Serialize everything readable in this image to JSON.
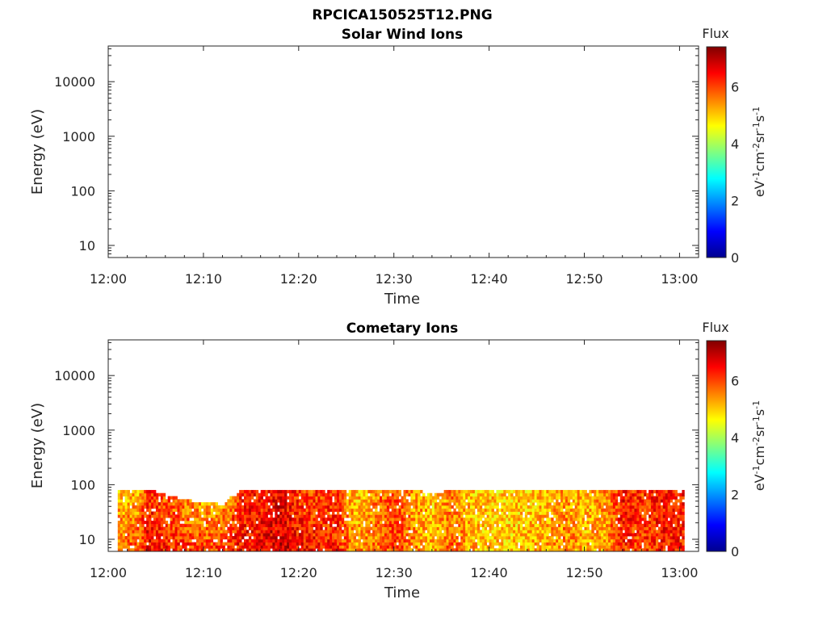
{
  "figure": {
    "title": "RPCICA150525T12.PNG"
  },
  "colors": {
    "axis": "#262626",
    "background": "#ffffff",
    "colormap": [
      "#00008f",
      "#0000ff",
      "#0080ff",
      "#00ffff",
      "#80ff80",
      "#ffff00",
      "#ff8000",
      "#ff0000",
      "#800000"
    ]
  },
  "chart_data": [
    {
      "type": "heatmap",
      "title": "Solar Wind Ions",
      "xlabel": "Time",
      "ylabel": "Energy (eV)",
      "x_ticks": [
        "12:00",
        "12:10",
        "12:20",
        "12:30",
        "12:40",
        "12:50",
        "13:00"
      ],
      "y_ticks": [
        "10",
        "100",
        "1000",
        "10000"
      ],
      "y_scale": "log",
      "ylim": [
        6,
        45000
      ],
      "x_range_minutes": [
        0,
        62
      ],
      "colorbar": {
        "label": "Flux",
        "unit_parts": [
          "eV",
          "-1",
          "cm",
          "-2",
          "sr",
          "-1",
          "s",
          "-1"
        ],
        "ticks": [
          "0",
          "2",
          "4",
          "6"
        ],
        "range": [
          0,
          7.4
        ]
      },
      "data": "empty",
      "cells": []
    },
    {
      "type": "heatmap",
      "title": "Cometary Ions",
      "xlabel": "Time",
      "ylabel": "Energy (eV)",
      "x_ticks": [
        "12:00",
        "12:10",
        "12:20",
        "12:30",
        "12:40",
        "12:50",
        "13:00"
      ],
      "y_ticks": [
        "10",
        "100",
        "1000",
        "10000"
      ],
      "y_scale": "log",
      "ylim": [
        6,
        45000
      ],
      "x_range_minutes": [
        0,
        62
      ],
      "colorbar": {
        "label": "Flux",
        "unit_parts": [
          "eV",
          "-1",
          "cm",
          "-2",
          "sr",
          "-1",
          "s",
          "-1"
        ],
        "ticks": [
          "0",
          "2",
          "4",
          "6"
        ],
        "range": [
          0,
          7.4
        ]
      },
      "data": "time vs energy flux spectrogram",
      "data_time_range_minutes": [
        1,
        60.5
      ],
      "data_energy_range_eV": [
        6,
        80
      ],
      "flux_profile": [
        {
          "t": 1,
          "e_hi": 80,
          "f_lo": 5.8,
          "f_hi": 5.0
        },
        {
          "t": 3,
          "e_hi": 80,
          "f_lo": 6.0,
          "f_hi": 5.2
        },
        {
          "t": 4,
          "e_hi": 80,
          "f_lo": 6.5,
          "f_hi": 6.2
        },
        {
          "t": 6,
          "e_hi": 60,
          "f_lo": 6.3,
          "f_hi": 5.8
        },
        {
          "t": 8,
          "e_hi": 50,
          "f_lo": 6.2,
          "f_hi": 5.3
        },
        {
          "t": 10,
          "e_hi": 45,
          "f_lo": 6.0,
          "f_hi": 5.0
        },
        {
          "t": 12,
          "e_hi": 40,
          "f_lo": 6.1,
          "f_hi": 5.2
        },
        {
          "t": 14,
          "e_hi": 80,
          "f_lo": 6.4,
          "f_hi": 6.3
        },
        {
          "t": 16,
          "e_hi": 80,
          "f_lo": 6.5,
          "f_hi": 6.3
        },
        {
          "t": 18,
          "e_hi": 80,
          "f_lo": 6.8,
          "f_hi": 6.6
        },
        {
          "t": 20,
          "e_hi": 80,
          "f_lo": 6.5,
          "f_hi": 6.0
        },
        {
          "t": 22,
          "e_hi": 75,
          "f_lo": 6.3,
          "f_hi": 6.0
        },
        {
          "t": 24,
          "e_hi": 80,
          "f_lo": 6.2,
          "f_hi": 6.1
        },
        {
          "t": 26,
          "e_hi": 80,
          "f_lo": 5.4,
          "f_hi": 5.0
        },
        {
          "t": 28,
          "e_hi": 80,
          "f_lo": 5.6,
          "f_hi": 5.6
        },
        {
          "t": 30,
          "e_hi": 80,
          "f_lo": 6.0,
          "f_hi": 6.0
        },
        {
          "t": 32,
          "e_hi": 80,
          "f_lo": 5.6,
          "f_hi": 5.3
        },
        {
          "t": 34,
          "e_hi": 60,
          "f_lo": 5.2,
          "f_hi": 5.0
        },
        {
          "t": 36,
          "e_hi": 80,
          "f_lo": 5.8,
          "f_hi": 5.5
        },
        {
          "t": 38,
          "e_hi": 80,
          "f_lo": 5.2,
          "f_hi": 5.0
        },
        {
          "t": 40,
          "e_hi": 80,
          "f_lo": 5.0,
          "f_hi": 5.1
        },
        {
          "t": 42,
          "e_hi": 80,
          "f_lo": 5.0,
          "f_hi": 4.9
        },
        {
          "t": 44,
          "e_hi": 80,
          "f_lo": 5.1,
          "f_hi": 5.0
        },
        {
          "t": 46,
          "e_hi": 80,
          "f_lo": 5.3,
          "f_hi": 5.1
        },
        {
          "t": 48,
          "e_hi": 80,
          "f_lo": 5.6,
          "f_hi": 5.4
        },
        {
          "t": 50,
          "e_hi": 80,
          "f_lo": 5.2,
          "f_hi": 5.0
        },
        {
          "t": 52,
          "e_hi": 80,
          "f_lo": 5.2,
          "f_hi": 5.5
        },
        {
          "t": 54,
          "e_hi": 80,
          "f_lo": 6.2,
          "f_hi": 6.4
        },
        {
          "t": 56,
          "e_hi": 80,
          "f_lo": 6.0,
          "f_hi": 6.1
        },
        {
          "t": 58,
          "e_hi": 80,
          "f_lo": 6.3,
          "f_hi": 6.4
        },
        {
          "t": 60,
          "e_hi": 80,
          "f_lo": 6.3,
          "f_hi": 6.3
        }
      ]
    }
  ]
}
